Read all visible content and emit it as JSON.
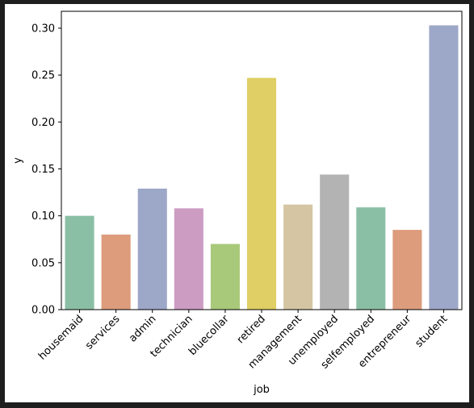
{
  "chart_data": {
    "type": "bar",
    "title": "",
    "xlabel": "job",
    "ylabel": "y",
    "ylim": [
      0,
      0.318
    ],
    "yticks": [
      "0.00",
      "0.05",
      "0.10",
      "0.15",
      "0.20",
      "0.25",
      "0.30"
    ],
    "ytick_values": [
      0.0,
      0.05,
      0.1,
      0.15,
      0.2,
      0.25,
      0.3
    ],
    "grid": false,
    "legend": "none",
    "categories": [
      "housemaid",
      "services",
      "admin",
      "technician",
      "bluecollar",
      "retired",
      "management",
      "unemployed",
      "selfemployed",
      "entrepreneur",
      "student"
    ],
    "values": [
      0.1,
      0.08,
      0.129,
      0.108,
      0.07,
      0.247,
      0.112,
      0.144,
      0.109,
      0.085,
      0.303
    ],
    "colors": [
      "#8bbfa5",
      "#dd9c7c",
      "#9da7c7",
      "#cc9cc3",
      "#a9c97a",
      "#dfcf64",
      "#d5c5a3",
      "#b3b3b3",
      "#8bbfa5",
      "#dd9c7c",
      "#9da7c7"
    ]
  }
}
